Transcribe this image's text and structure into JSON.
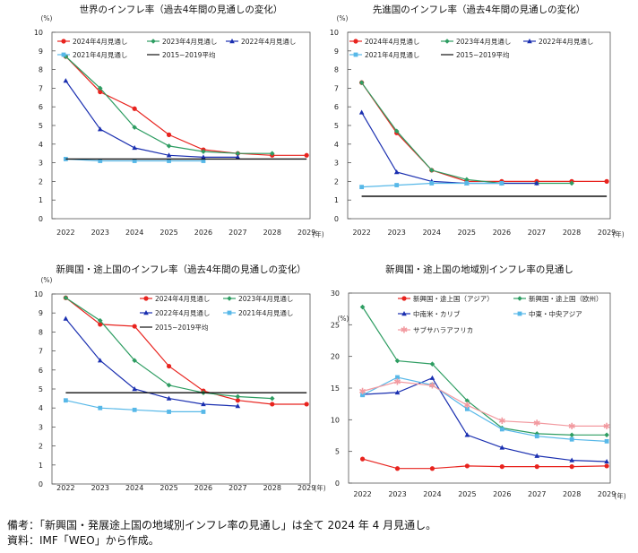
{
  "chart_data": [
    {
      "type": "line",
      "title": "世界のインフレ率（過去4年間の見通しの変化）",
      "unit_y": "(%)",
      "unit_x": "(年)",
      "categories": [
        "2022",
        "2023",
        "2024",
        "2025",
        "2026",
        "2027",
        "2028",
        "2029"
      ],
      "ylim": [
        0,
        10
      ],
      "yticks": [
        "0",
        "1",
        "2",
        "3",
        "4",
        "5",
        "6",
        "7",
        "8",
        "9",
        "10"
      ],
      "legend_position": "top",
      "series": [
        {
          "name": "2024年4月見通し",
          "color": "#e8231e",
          "marker": "circle",
          "values": [
            8.7,
            6.8,
            5.9,
            4.5,
            3.7,
            3.5,
            3.4,
            3.4
          ]
        },
        {
          "name": "2023年4月見通し",
          "color": "#2e9d62",
          "marker": "diamond",
          "values": [
            8.7,
            7.0,
            4.9,
            3.9,
            3.6,
            3.5,
            3.5,
            null
          ]
        },
        {
          "name": "2022年4月見通し",
          "color": "#1a2fb0",
          "marker": "triangle",
          "values": [
            7.4,
            4.8,
            3.8,
            3.4,
            3.3,
            3.3,
            null,
            null
          ]
        },
        {
          "name": "2021年4月見通し",
          "color": "#57b8e8",
          "marker": "square",
          "values": [
            3.2,
            3.1,
            3.1,
            3.1,
            3.1,
            null,
            null,
            null
          ]
        },
        {
          "name": "2015~2019平均",
          "color": "#111111",
          "marker": "none",
          "values": [
            3.2,
            3.2,
            3.2,
            3.2,
            3.2,
            3.2,
            3.2,
            3.2
          ]
        }
      ]
    },
    {
      "type": "line",
      "title": "先進国のインフレ率（過去4年間の見通しの変化）",
      "unit_y": "(%)",
      "unit_x": "(年)",
      "categories": [
        "2022",
        "2023",
        "2024",
        "2025",
        "2026",
        "2027",
        "2028",
        "2029"
      ],
      "ylim": [
        0,
        10
      ],
      "yticks": [
        "0",
        "1",
        "2",
        "3",
        "4",
        "5",
        "6",
        "7",
        "8",
        "9",
        "10"
      ],
      "legend_position": "top",
      "series": [
        {
          "name": "2024年4月見通し",
          "color": "#e8231e",
          "marker": "circle",
          "values": [
            7.3,
            4.6,
            2.6,
            2.0,
            2.0,
            2.0,
            2.0,
            2.0
          ]
        },
        {
          "name": "2023年4月見通し",
          "color": "#2e9d62",
          "marker": "diamond",
          "values": [
            7.3,
            4.7,
            2.6,
            2.1,
            1.9,
            1.9,
            1.9,
            null
          ]
        },
        {
          "name": "2022年4月見通し",
          "color": "#1a2fb0",
          "marker": "triangle",
          "values": [
            5.7,
            2.5,
            2.0,
            1.9,
            1.9,
            1.9,
            null,
            null
          ]
        },
        {
          "name": "2021年4月見通し",
          "color": "#57b8e8",
          "marker": "square",
          "values": [
            1.7,
            1.8,
            1.9,
            1.9,
            1.9,
            null,
            null,
            null
          ]
        },
        {
          "name": "2015~2019平均",
          "color": "#111111",
          "marker": "none",
          "values": [
            1.2,
            1.2,
            1.2,
            1.2,
            1.2,
            1.2,
            1.2,
            1.2
          ]
        }
      ]
    },
    {
      "type": "line",
      "title": "新興国・途上国のインフレ率（過去4年間の見通しの変化）",
      "unit_y": "(%)",
      "unit_x": "(年)",
      "categories": [
        "2022",
        "2023",
        "2024",
        "2025",
        "2026",
        "2027",
        "2028",
        "2029"
      ],
      "ylim": [
        0,
        10
      ],
      "yticks": [
        "0",
        "1",
        "2",
        "3",
        "4",
        "5",
        "6",
        "7",
        "8",
        "9",
        "10"
      ],
      "legend_position": "top",
      "series": [
        {
          "name": "2024年4月見通し",
          "color": "#e8231e",
          "marker": "circle",
          "values": [
            9.8,
            8.4,
            8.3,
            6.2,
            4.9,
            4.4,
            4.2,
            4.2
          ]
        },
        {
          "name": "2023年4月見通し",
          "color": "#2e9d62",
          "marker": "diamond",
          "values": [
            9.8,
            8.6,
            6.5,
            5.2,
            4.8,
            4.6,
            4.5,
            null
          ]
        },
        {
          "name": "2022年4月見通し",
          "color": "#1a2fb0",
          "marker": "triangle",
          "values": [
            8.7,
            6.5,
            5.0,
            4.5,
            4.2,
            4.1,
            null,
            null
          ]
        },
        {
          "name": "2021年4月見通し",
          "color": "#57b8e8",
          "marker": "square",
          "values": [
            4.4,
            4.0,
            3.9,
            3.8,
            3.8,
            null,
            null,
            null
          ]
        },
        {
          "name": "2015~2019平均",
          "color": "#111111",
          "marker": "none",
          "values": [
            4.8,
            4.8,
            4.8,
            4.8,
            4.8,
            4.8,
            4.8,
            4.8
          ]
        }
      ]
    },
    {
      "type": "line",
      "title": "新興国・途上国の地域別インフレ率の見通し",
      "unit_y": "(%)",
      "unit_x": "(年)",
      "categories": [
        "2022",
        "2023",
        "2024",
        "2025",
        "2026",
        "2027",
        "2028",
        "2029"
      ],
      "ylim": [
        0,
        30
      ],
      "yticks": [
        "0",
        "5",
        "10",
        "15",
        "20",
        "25",
        "30"
      ],
      "legend_position": "top",
      "series": [
        {
          "name": "新興国・途上国（アジア）",
          "color": "#e8231e",
          "marker": "circle",
          "values": [
            3.8,
            2.3,
            2.3,
            2.7,
            2.6,
            2.6,
            2.6,
            2.7
          ]
        },
        {
          "name": "新興国・途上国（欧州）",
          "color": "#2e9d62",
          "marker": "diamond",
          "values": [
            27.8,
            19.3,
            18.8,
            13.0,
            8.7,
            7.8,
            7.6,
            7.6
          ]
        },
        {
          "name": "中南米・カリブ",
          "color": "#1a2fb0",
          "marker": "triangle",
          "values": [
            14.0,
            14.3,
            16.6,
            7.6,
            5.6,
            4.3,
            3.6,
            3.4
          ]
        },
        {
          "name": "中東・中央アジア",
          "color": "#57b8e8",
          "marker": "square",
          "values": [
            13.9,
            16.7,
            15.5,
            11.7,
            8.5,
            7.4,
            6.9,
            6.6
          ]
        },
        {
          "name": "サブサハラアフリカ",
          "color": "#f29aa0",
          "marker": "star",
          "values": [
            14.5,
            16.0,
            15.4,
            12.3,
            9.8,
            9.5,
            9.0,
            9.0
          ]
        }
      ]
    }
  ],
  "footnote": {
    "note": "備考：「新興国・発展途上国の地域別インフレ率の見通し」は全て 2024 年 4 月見通し。",
    "source": "資料：IMF「WEO」から作成。"
  }
}
